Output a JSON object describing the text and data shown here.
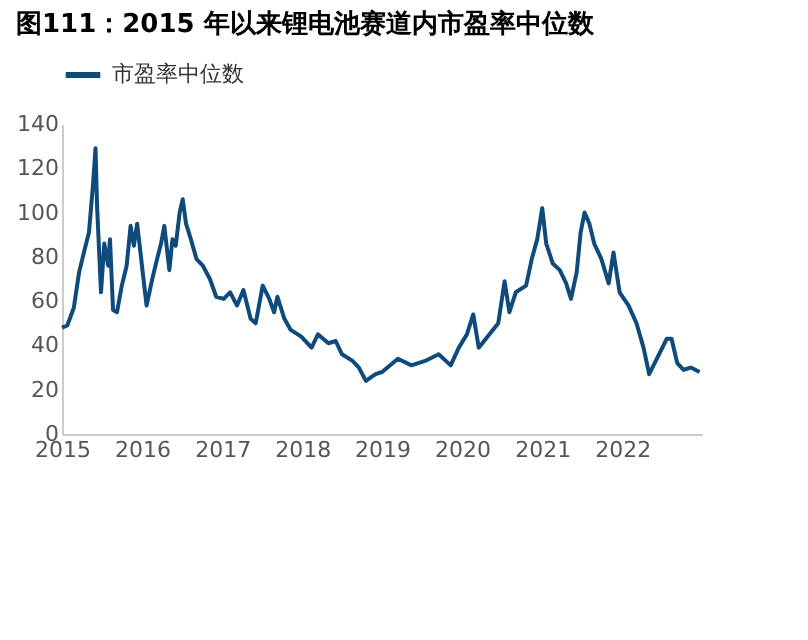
{
  "chart_data": {
    "type": "line",
    "title": "图111：2015 年以来锂电池赛道内市盈率中位数",
    "x": [
      "2015-01-01",
      "2015-01-25",
      "2015-02-24",
      "2015-03-20",
      "2015-04-11",
      "2015-05-04",
      "2015-05-22",
      "2015-06-03",
      "2015-06-10",
      "2015-06-28",
      "2015-07-13",
      "2015-07-31",
      "2015-08-08",
      "2015-08-22",
      "2015-09-09",
      "2015-10-01",
      "2015-10-23",
      "2015-11-10",
      "2015-11-25",
      "2015-12-10",
      "2016-01-01",
      "2016-01-22",
      "2016-02-17",
      "2016-03-10",
      "2016-03-28",
      "2016-04-12",
      "2016-05-05",
      "2016-05-19",
      "2016-06-03",
      "2016-06-21",
      "2016-07-05",
      "2016-07-20",
      "2016-08-11",
      "2016-09-06",
      "2016-10-05",
      "2016-11-06",
      "2016-12-05",
      "2017-01-08",
      "2017-02-06",
      "2017-03-10",
      "2017-04-08",
      "2017-05-11",
      "2017-06-03",
      "2017-07-05",
      "2017-08-04",
      "2017-08-26",
      "2017-09-10",
      "2017-10-12",
      "2017-11-10",
      "2017-12-28",
      "2018-02-13",
      "2018-03-14",
      "2018-05-01",
      "2018-06-03",
      "2018-07-02",
      "2018-08-19",
      "2018-09-17",
      "2018-10-19",
      "2018-12-02",
      "2019-01-01",
      "2019-03-14",
      "2019-05-15",
      "2019-07-16",
      "2019-09-16",
      "2019-11-10",
      "2019-12-17",
      "2020-01-23",
      "2020-02-21",
      "2020-03-17",
      "2020-05-05",
      "2020-06-14",
      "2020-07-13",
      "2020-08-04",
      "2020-09-02",
      "2020-10-19",
      "2020-11-14",
      "2020-12-09",
      "2021-01-01",
      "2021-01-19",
      "2021-02-18",
      "2021-03-22",
      "2021-04-20",
      "2021-05-12",
      "2021-06-07",
      "2021-06-25",
      "2021-07-13",
      "2021-08-04",
      "2021-08-26",
      "2021-09-28",
      "2021-10-31",
      "2021-11-22",
      "2021-12-20",
      "2022-01-30",
      "2022-03-07",
      "2022-04-08",
      "2022-05-04",
      "2022-05-29",
      "2022-07-23",
      "2022-08-14",
      "2022-09-09",
      "2022-10-08",
      "2022-11-10",
      "2022-12-20"
    ],
    "series": [
      {
        "name": "市盈率中位数",
        "color": "#0f4a7c",
        "values": [
          48,
          49,
          57,
          73,
          82,
          91,
          112,
          129,
          103,
          64,
          86,
          76,
          88,
          56,
          55,
          67,
          76,
          94,
          85,
          95,
          76,
          58,
          70,
          79,
          86,
          94,
          74,
          88,
          85,
          100,
          106,
          95,
          88,
          79,
          76,
          70,
          62,
          61,
          64,
          58,
          65,
          52,
          50,
          67,
          61,
          55,
          62,
          52,
          47,
          44,
          39,
          45,
          41,
          42,
          36,
          33,
          30,
          24,
          27,
          28,
          34,
          31,
          33,
          36,
          31,
          39,
          45,
          54,
          39,
          45,
          50,
          69,
          55,
          64,
          67,
          79,
          88,
          102,
          86,
          77,
          74,
          68,
          61,
          73,
          91,
          100,
          95,
          86,
          79,
          68,
          82,
          64,
          58,
          50,
          39,
          27,
          32,
          43,
          43,
          32,
          29,
          30,
          28
        ]
      }
    ],
    "xlim": [
      "2015-01-01",
      "2022-12-31"
    ],
    "xticks": [
      {
        "value": "2015-01-01",
        "label": "2015"
      },
      {
        "value": "2016-01-01",
        "label": "2016"
      },
      {
        "value": "2017-01-01",
        "label": "2017"
      },
      {
        "value": "2018-01-01",
        "label": "2018"
      },
      {
        "value": "2019-01-01",
        "label": "2019"
      },
      {
        "value": "2020-01-01",
        "label": "2020"
      },
      {
        "value": "2021-01-01",
        "label": "2021"
      },
      {
        "value": "2022-01-01",
        "label": "2022"
      }
    ],
    "ylim": [
      0,
      140
    ],
    "yticks": [
      0,
      20,
      40,
      60,
      80,
      100,
      120,
      140
    ],
    "grid": false,
    "legend": "top",
    "line_style": "solid"
  }
}
